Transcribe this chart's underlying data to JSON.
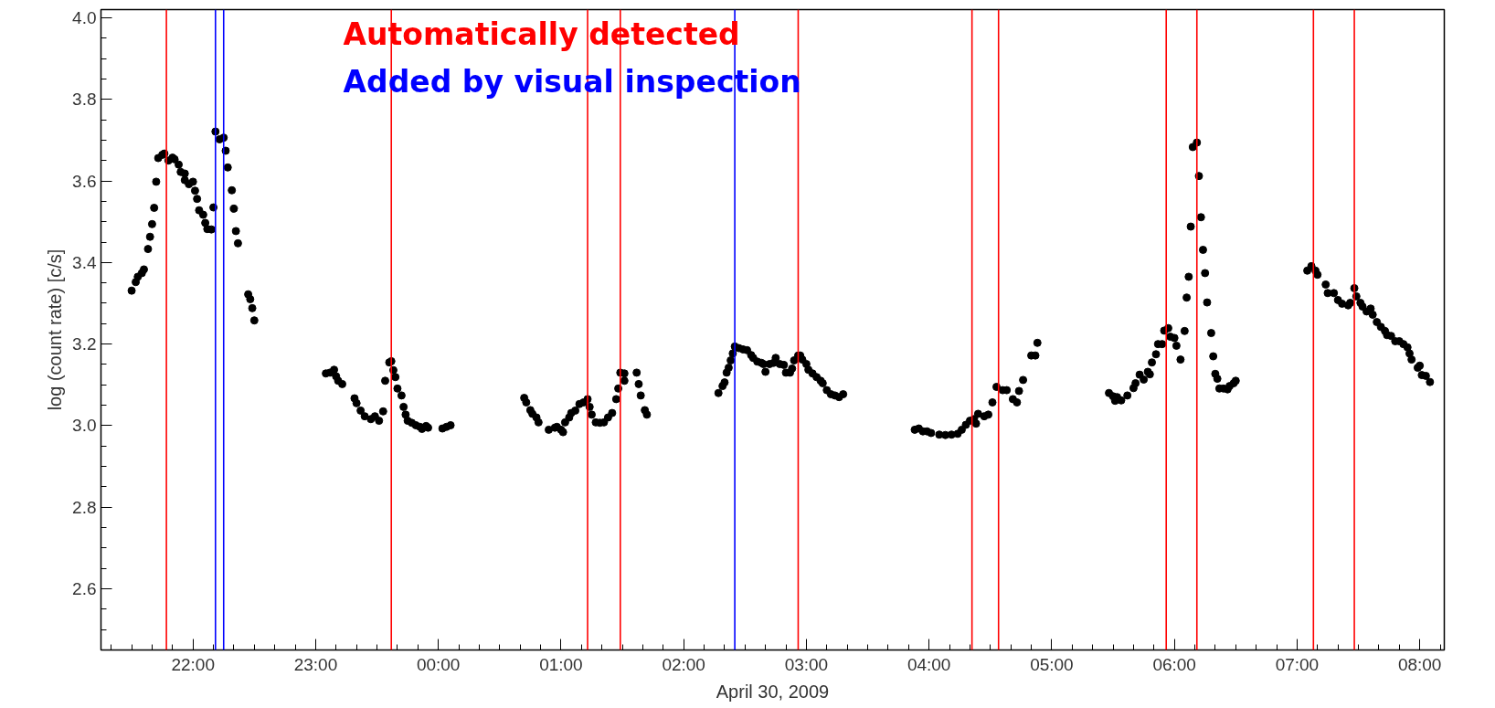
{
  "chart_data": {
    "type": "scatter",
    "xlabel": "April 30, 2009",
    "ylabel": "log (count rate) [c/s]",
    "annotations": [
      "Automatically detected",
      "Added by visual inspection"
    ],
    "marker": "circle",
    "grid": false,
    "xlim": [
      "2009-04-29T21:15",
      "2009-04-30T08:12"
    ],
    "ylim": [
      2.45,
      4.02
    ],
    "xticks": [
      {
        "value": "2009-04-29T22:00",
        "label": "22:00"
      },
      {
        "value": "2009-04-29T23:00",
        "label": "23:00"
      },
      {
        "value": "2009-04-30T00:00",
        "label": "00:00"
      },
      {
        "value": "2009-04-30T01:00",
        "label": "01:00"
      },
      {
        "value": "2009-04-30T02:00",
        "label": "02:00"
      },
      {
        "value": "2009-04-30T03:00",
        "label": "03:00"
      },
      {
        "value": "2009-04-30T04:00",
        "label": "04:00"
      },
      {
        "value": "2009-04-30T05:00",
        "label": "05:00"
      },
      {
        "value": "2009-04-30T06:00",
        "label": "06:00"
      },
      {
        "value": "2009-04-30T07:00",
        "label": "07:00"
      },
      {
        "value": "2009-04-30T08:00",
        "label": "08:00"
      }
    ],
    "yticks": [
      {
        "value": 2.6,
        "label": "2.6"
      },
      {
        "value": 2.8,
        "label": "2.8"
      },
      {
        "value": 3.0,
        "label": "3.0"
      },
      {
        "value": 3.2,
        "label": "3.2"
      },
      {
        "value": 3.4,
        "label": "3.4"
      },
      {
        "value": 3.6,
        "label": "3.6"
      },
      {
        "value": 3.8,
        "label": "3.8"
      },
      {
        "value": 4.0,
        "label": "4.0"
      }
    ],
    "ref_lines": [
      {
        "axis": "x",
        "value": "2009-04-29T21:47",
        "color": "#ff0000"
      },
      {
        "axis": "x",
        "value": "2009-04-29T22:11",
        "color": "#0000ff"
      },
      {
        "axis": "x",
        "value": "2009-04-29T22:15",
        "color": "#0000ff"
      },
      {
        "axis": "x",
        "value": "2009-04-29T23:37",
        "color": "#ff0000"
      },
      {
        "axis": "x",
        "value": "2009-04-30T01:13",
        "color": "#ff0000"
      },
      {
        "axis": "x",
        "value": "2009-04-30T01:29",
        "color": "#ff0000"
      },
      {
        "axis": "x",
        "value": "2009-04-30T02:25",
        "color": "#0000ff"
      },
      {
        "axis": "x",
        "value": "2009-04-30T02:56",
        "color": "#ff0000"
      },
      {
        "axis": "x",
        "value": "2009-04-30T04:21",
        "color": "#ff0000"
      },
      {
        "axis": "x",
        "value": "2009-04-30T04:34",
        "color": "#ff0000"
      },
      {
        "axis": "x",
        "value": "2009-04-30T05:56",
        "color": "#ff0000"
      },
      {
        "axis": "x",
        "value": "2009-04-30T06:11",
        "color": "#ff0000"
      },
      {
        "axis": "x",
        "value": "2009-04-30T07:08",
        "color": "#ff0000"
      },
      {
        "axis": "x",
        "value": "2009-04-30T07:28",
        "color": "#ff0000"
      }
    ],
    "series": [
      {
        "color": "#000000",
        "x": [
          "2009-04-29T21:30",
          "2009-04-29T21:32",
          "2009-04-29T21:33",
          "2009-04-29T21:35",
          "2009-04-29T21:36",
          "2009-04-29T21:38",
          "2009-04-29T21:39",
          "2009-04-29T21:40",
          "2009-04-29T21:41",
          "2009-04-29T21:42",
          "2009-04-29T21:43",
          "2009-04-29T21:45",
          "2009-04-29T21:46",
          "2009-04-29T21:48",
          "2009-04-29T21:50",
          "2009-04-29T21:51",
          "2009-04-29T21:53",
          "2009-04-29T21:54",
          "2009-04-29T21:56",
          "2009-04-29T21:56",
          "2009-04-29T21:58",
          "2009-04-29T22:00",
          "2009-04-29T22:01",
          "2009-04-29T22:02",
          "2009-04-29T22:03",
          "2009-04-29T22:05",
          "2009-04-29T22:06",
          "2009-04-29T22:07",
          "2009-04-29T22:09",
          "2009-04-29T22:10",
          "2009-04-29T22:11",
          "2009-04-29T22:13",
          "2009-04-29T22:15",
          "2009-04-29T22:16",
          "2009-04-29T22:17",
          "2009-04-29T22:19",
          "2009-04-29T22:20",
          "2009-04-29T22:21",
          "2009-04-29T22:22",
          "2009-04-29T22:27",
          "2009-04-29T22:28",
          "2009-04-29T22:29",
          "2009-04-29T22:30",
          "2009-04-29T23:05",
          "2009-04-29T23:07",
          "2009-04-29T23:09",
          "2009-04-29T23:10",
          "2009-04-29T23:11",
          "2009-04-29T23:13",
          "2009-04-29T23:19",
          "2009-04-29T23:20",
          "2009-04-29T23:22",
          "2009-04-29T23:24",
          "2009-04-29T23:27",
          "2009-04-29T23:29",
          "2009-04-29T23:31",
          "2009-04-29T23:33",
          "2009-04-29T23:34",
          "2009-04-29T23:36",
          "2009-04-29T23:37",
          "2009-04-29T23:38",
          "2009-04-29T23:39",
          "2009-04-29T23:40",
          "2009-04-29T23:42",
          "2009-04-29T23:43",
          "2009-04-29T23:44",
          "2009-04-29T23:45",
          "2009-04-29T23:47",
          "2009-04-29T23:49",
          "2009-04-29T23:51",
          "2009-04-29T23:52",
          "2009-04-29T23:54",
          "2009-04-29T23:55",
          "2009-04-30T00:02",
          "2009-04-30T00:04",
          "2009-04-30T00:06",
          "2009-04-30T00:42",
          "2009-04-30T00:43",
          "2009-04-30T00:45",
          "2009-04-30T00:46",
          "2009-04-30T00:48",
          "2009-04-30T00:49",
          "2009-04-30T00:54",
          "2009-04-30T00:57",
          "2009-04-30T00:58",
          "2009-04-30T01:00",
          "2009-04-30T01:01",
          "2009-04-30T01:02",
          "2009-04-30T01:04",
          "2009-04-30T01:05",
          "2009-04-30T01:07",
          "2009-04-30T01:09",
          "2009-04-30T01:11",
          "2009-04-30T01:13",
          "2009-04-30T01:14",
          "2009-04-30T01:15",
          "2009-04-30T01:17",
          "2009-04-30T01:19",
          "2009-04-30T01:21",
          "2009-04-30T01:23",
          "2009-04-30T01:25",
          "2009-04-30T01:27",
          "2009-04-30T01:28",
          "2009-04-30T01:29",
          "2009-04-30T01:31",
          "2009-04-30T01:31",
          "2009-04-30T01:37",
          "2009-04-30T01:38",
          "2009-04-30T01:39",
          "2009-04-30T01:41",
          "2009-04-30T01:42",
          "2009-04-30T02:17",
          "2009-04-30T02:19",
          "2009-04-30T02:20",
          "2009-04-30T02:21",
          "2009-04-30T02:22",
          "2009-04-30T02:23",
          "2009-04-30T02:24",
          "2009-04-30T02:25",
          "2009-04-30T02:27",
          "2009-04-30T02:29",
          "2009-04-30T02:31",
          "2009-04-30T02:33",
          "2009-04-30T02:34",
          "2009-04-30T02:36",
          "2009-04-30T02:38",
          "2009-04-30T02:39",
          "2009-04-30T02:40",
          "2009-04-30T02:42",
          "2009-04-30T02:44",
          "2009-04-30T02:45",
          "2009-04-30T02:47",
          "2009-04-30T02:49",
          "2009-04-30T02:50",
          "2009-04-30T02:52",
          "2009-04-30T02:53",
          "2009-04-30T02:54",
          "2009-04-30T02:56",
          "2009-04-30T02:57",
          "2009-04-30T02:58",
          "2009-04-30T03:00",
          "2009-04-30T03:01",
          "2009-04-30T03:03",
          "2009-04-30T03:05",
          "2009-04-30T03:07",
          "2009-04-30T03:08",
          "2009-04-30T03:10",
          "2009-04-30T03:12",
          "2009-04-30T03:14",
          "2009-04-30T03:16",
          "2009-04-30T03:18",
          "2009-04-30T03:53",
          "2009-04-30T03:55",
          "2009-04-30T03:57",
          "2009-04-30T03:59",
          "2009-04-30T04:01",
          "2009-04-30T04:05",
          "2009-04-30T04:08",
          "2009-04-30T04:11",
          "2009-04-30T04:14",
          "2009-04-30T04:16",
          "2009-04-30T04:18",
          "2009-04-30T04:20",
          "2009-04-30T04:22",
          "2009-04-30T04:23",
          "2009-04-30T04:24",
          "2009-04-30T04:27",
          "2009-04-30T04:29",
          "2009-04-30T04:31",
          "2009-04-30T04:33",
          "2009-04-30T04:36",
          "2009-04-30T04:38",
          "2009-04-30T04:41",
          "2009-04-30T04:43",
          "2009-04-30T04:44",
          "2009-04-30T04:46",
          "2009-04-30T04:50",
          "2009-04-30T04:52",
          "2009-04-30T04:53",
          "2009-04-30T05:28",
          "2009-04-30T05:30",
          "2009-04-30T05:31",
          "2009-04-30T05:32",
          "2009-04-30T05:34",
          "2009-04-30T05:37",
          "2009-04-30T05:40",
          "2009-04-30T05:41",
          "2009-04-30T05:43",
          "2009-04-30T05:45",
          "2009-04-30T05:47",
          "2009-04-30T05:48",
          "2009-04-30T05:49",
          "2009-04-30T05:51",
          "2009-04-30T05:52",
          "2009-04-30T05:54",
          "2009-04-30T05:55",
          "2009-04-30T05:57",
          "2009-04-30T05:58",
          "2009-04-30T06:00",
          "2009-04-30T06:01",
          "2009-04-30T06:03",
          "2009-04-30T06:05",
          "2009-04-30T06:06",
          "2009-04-30T06:07",
          "2009-04-30T06:08",
          "2009-04-30T06:09",
          "2009-04-30T06:11",
          "2009-04-30T06:12",
          "2009-04-30T06:13",
          "2009-04-30T06:14",
          "2009-04-30T06:15",
          "2009-04-30T06:16",
          "2009-04-30T06:18",
          "2009-04-30T06:19",
          "2009-04-30T06:20",
          "2009-04-30T06:21",
          "2009-04-30T06:22",
          "2009-04-30T06:24",
          "2009-04-30T06:26",
          "2009-04-30T06:27",
          "2009-04-30T06:29",
          "2009-04-30T06:30",
          "2009-04-30T07:05",
          "2009-04-30T07:07",
          "2009-04-30T07:09",
          "2009-04-30T07:10",
          "2009-04-30T07:14",
          "2009-04-30T07:15",
          "2009-04-30T07:18",
          "2009-04-30T07:20",
          "2009-04-30T07:22",
          "2009-04-30T07:25",
          "2009-04-30T07:26",
          "2009-04-30T07:28",
          "2009-04-30T07:29",
          "2009-04-30T07:31",
          "2009-04-30T07:32",
          "2009-04-30T07:34",
          "2009-04-30T07:36",
          "2009-04-30T07:37",
          "2009-04-30T07:39",
          "2009-04-30T07:41",
          "2009-04-30T07:43",
          "2009-04-30T07:44",
          "2009-04-30T07:46",
          "2009-04-30T07:48",
          "2009-04-30T07:50",
          "2009-04-30T07:52",
          "2009-04-30T07:54",
          "2009-04-30T07:55",
          "2009-04-30T07:56",
          "2009-04-30T07:59",
          "2009-04-30T08:00",
          "2009-04-30T08:01",
          "2009-04-30T08:03",
          "2009-04-30T08:05"
        ],
        "values": [
          3.331,
          3.352,
          3.365,
          3.374,
          3.383,
          3.433,
          3.463,
          3.494,
          3.534,
          3.598,
          3.656,
          3.664,
          3.667,
          3.65,
          3.657,
          3.653,
          3.64,
          3.622,
          3.618,
          3.602,
          3.592,
          3.598,
          3.576,
          3.556,
          3.528,
          3.517,
          3.497,
          3.482,
          3.481,
          3.535,
          3.721,
          3.702,
          3.706,
          3.674,
          3.633,
          3.577,
          3.532,
          3.477,
          3.447,
          3.322,
          3.31,
          3.288,
          3.258,
          3.128,
          3.13,
          3.137,
          3.121,
          3.11,
          3.102,
          3.067,
          3.055,
          3.037,
          3.023,
          3.016,
          3.023,
          3.012,
          3.035,
          3.11,
          3.155,
          3.158,
          3.136,
          3.119,
          3.091,
          3.074,
          3.046,
          3.027,
          3.012,
          3.007,
          3.001,
          2.997,
          2.992,
          2.999,
          2.995,
          2.993,
          2.997,
          3.001,
          3.068,
          3.057,
          3.038,
          3.029,
          3.02,
          3.008,
          2.99,
          2.995,
          2.997,
          2.99,
          2.984,
          3.008,
          3.02,
          3.031,
          3.037,
          3.053,
          3.057,
          3.065,
          3.046,
          3.027,
          3.008,
          3.007,
          3.008,
          3.02,
          3.031,
          3.065,
          3.091,
          3.13,
          3.128,
          3.11,
          3.13,
          3.102,
          3.074,
          3.038,
          3.027,
          3.08,
          3.097,
          3.106,
          3.13,
          3.142,
          3.16,
          3.177,
          3.194,
          3.19,
          3.187,
          3.185,
          3.173,
          3.166,
          3.157,
          3.154,
          3.151,
          3.132,
          3.151,
          3.154,
          3.166,
          3.151,
          3.149,
          3.13,
          3.13,
          3.14,
          3.16,
          3.172,
          3.172,
          3.162,
          3.151,
          3.137,
          3.128,
          3.119,
          3.11,
          3.104,
          3.087,
          3.077,
          3.074,
          3.07,
          3.077,
          2.99,
          2.993,
          2.986,
          2.986,
          2.982,
          2.978,
          2.977,
          2.978,
          2.98,
          2.99,
          3.002,
          3.012,
          3.016,
          3.005,
          3.029,
          3.023,
          3.027,
          3.057,
          3.095,
          3.087,
          3.087,
          3.065,
          3.057,
          3.085,
          3.112,
          3.172,
          3.172,
          3.203,
          3.08,
          3.072,
          3.061,
          3.07,
          3.062,
          3.074,
          3.092,
          3.104,
          3.125,
          3.113,
          3.132,
          3.126,
          3.155,
          3.175,
          3.2,
          3.2,
          3.233,
          3.239,
          3.218,
          3.215,
          3.196,
          3.162,
          3.232,
          3.314,
          3.365,
          3.488,
          3.683,
          3.694,
          3.612,
          3.511,
          3.431,
          3.374,
          3.302,
          3.227,
          3.17,
          3.127,
          3.115,
          3.091,
          3.091,
          3.089,
          3.097,
          3.104,
          3.11,
          3.38,
          3.391,
          3.38,
          3.37,
          3.346,
          3.325,
          3.325,
          3.308,
          3.299,
          3.295,
          3.301,
          3.337,
          3.317,
          3.301,
          3.292,
          3.28,
          3.287,
          3.272,
          3.254,
          3.242,
          3.232,
          3.222,
          3.22,
          3.207,
          3.207,
          3.2,
          3.192,
          3.177,
          3.162,
          3.142,
          3.147,
          3.124,
          3.122,
          3.107
        ]
      }
    ]
  }
}
